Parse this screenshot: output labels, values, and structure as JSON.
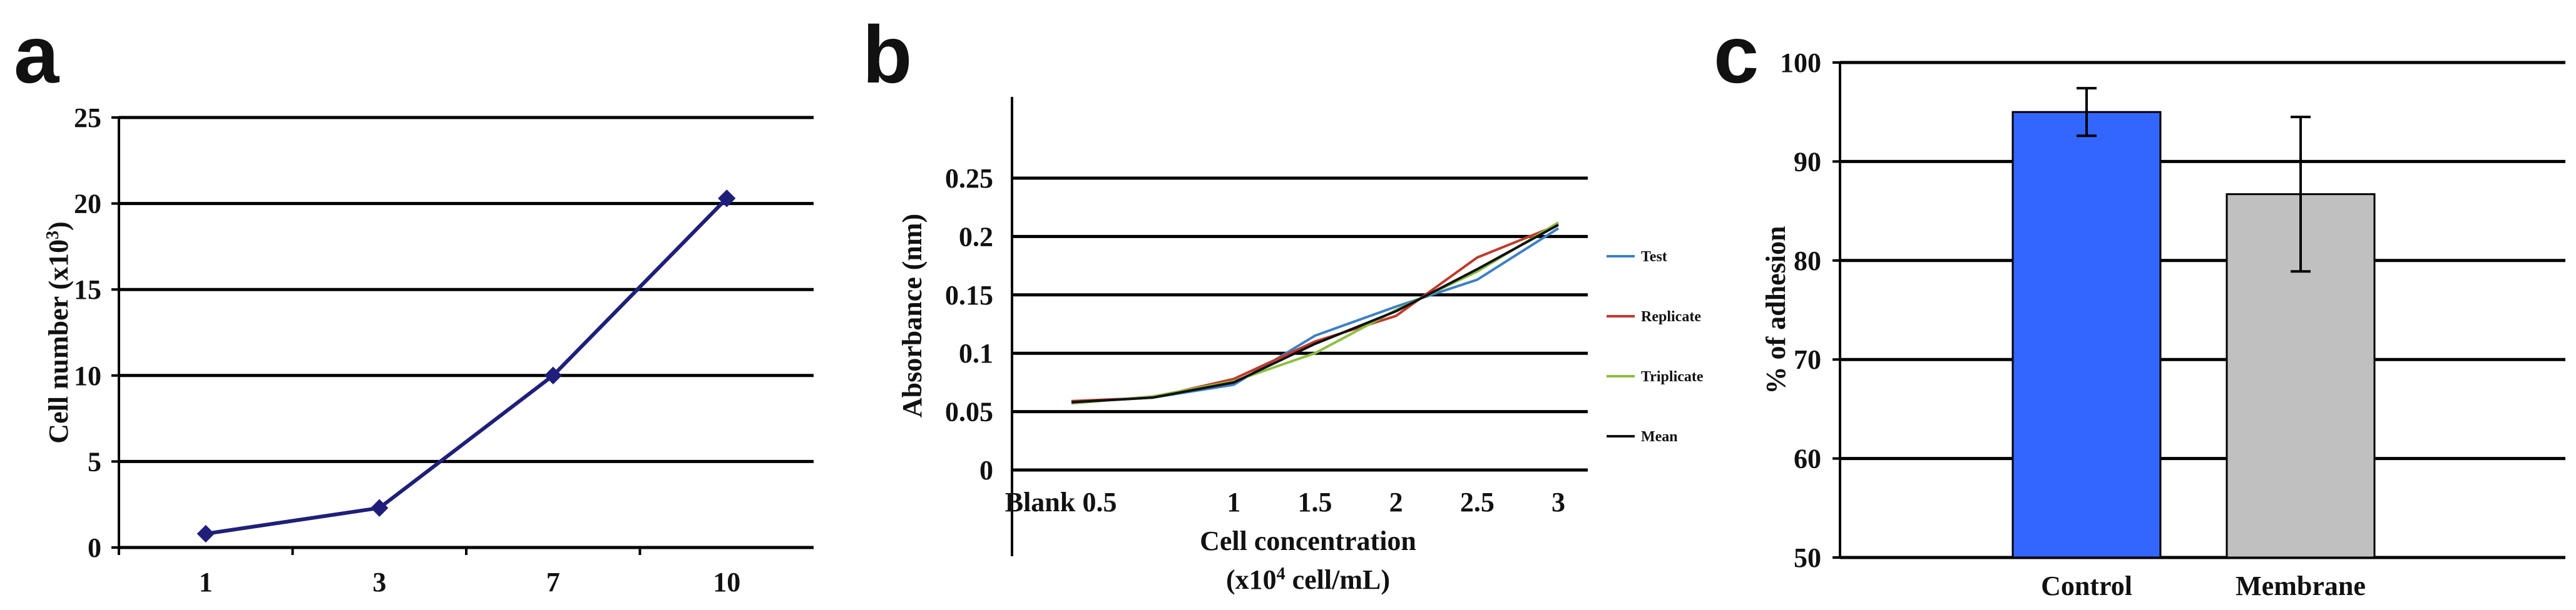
{
  "panels": {
    "a": {
      "letter": "a",
      "chart_data": {
        "type": "line",
        "x": [
          "1",
          "3",
          "7",
          "10"
        ],
        "series": [
          {
            "values": [
              0.8,
              2.3,
              10,
              20.3
            ],
            "color": "#1f1f7a"
          }
        ],
        "ylabel": "Cell number (x10",
        "ylabel_sup": "3",
        "ylabel_end": ")",
        "xlabel": "",
        "ylim": [
          0,
          25
        ],
        "yticks": [
          "0",
          "5",
          "10",
          "15",
          "20",
          "25"
        ],
        "grid": true
      }
    },
    "b": {
      "letter": "b",
      "chart_data": {
        "type": "line",
        "categories": [
          "Blank",
          "0.5",
          "1",
          "1.5",
          "2",
          "2.5",
          "3"
        ],
        "series": [
          {
            "name": "Test",
            "color": "#3d7fc6",
            "values": [
              0.058,
              0.062,
              0.073,
              0.115,
              0.14,
              0.163,
              0.207
            ]
          },
          {
            "name": "Replicate",
            "color": "#c0392b",
            "values": [
              0.059,
              0.062,
              0.078,
              0.11,
              0.132,
              0.182,
              0.21
            ]
          },
          {
            "name": "Triplicate",
            "color": "#8cbf3f",
            "values": [
              0.057,
              0.063,
              0.076,
              0.1,
              0.137,
              0.17,
              0.212
            ]
          },
          {
            "name": "Mean",
            "color": "#111111",
            "values": [
              0.058,
              0.062,
              0.075,
              0.108,
              0.136,
              0.172,
              0.21
            ]
          }
        ],
        "ylabel": "Absorbance (nm)",
        "xlabel_line1": "Cell concentration",
        "xlabel_line2_pre": "(x10",
        "xlabel_sup": "4",
        "xlabel_line2_post": " cell/mL)",
        "ylim": [
          0,
          0.25
        ],
        "yticks": [
          "0",
          "0.05",
          "0.1",
          "0.15",
          "0.2",
          "0.25"
        ],
        "legend": "right",
        "grid": true
      }
    },
    "c": {
      "letter": "c",
      "chart_data": {
        "type": "bar",
        "categories": [
          "Control",
          "Membrane"
        ],
        "values": [
          95.0,
          86.7
        ],
        "errors": [
          2.4,
          7.8
        ],
        "colors": [
          "#3366ff",
          "#c0c0c0"
        ],
        "ylabel": "% of adhesion",
        "ylim": [
          50,
          100
        ],
        "yticks": [
          "50",
          "60",
          "70",
          "80",
          "90",
          "100"
        ],
        "grid": true
      }
    }
  }
}
